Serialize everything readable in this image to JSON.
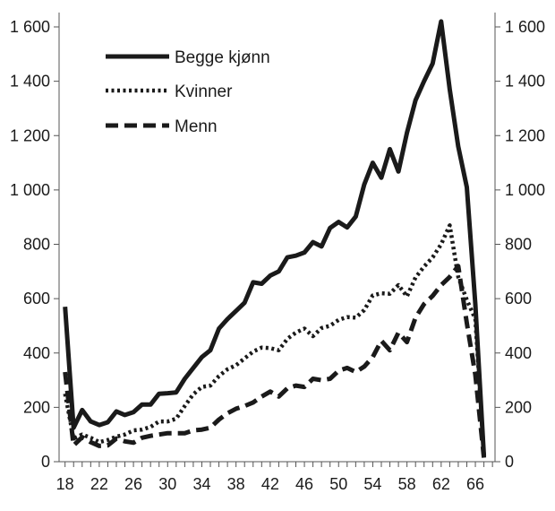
{
  "chart_data": {
    "type": "line",
    "x": [
      18,
      19,
      20,
      21,
      22,
      23,
      24,
      25,
      26,
      27,
      28,
      29,
      30,
      31,
      32,
      33,
      34,
      35,
      36,
      37,
      38,
      39,
      40,
      41,
      42,
      43,
      44,
      45,
      46,
      47,
      48,
      49,
      50,
      51,
      52,
      53,
      54,
      55,
      56,
      57,
      58,
      59,
      60,
      61,
      62,
      63,
      64,
      65,
      66,
      67
    ],
    "xticks": [
      18,
      22,
      26,
      30,
      34,
      38,
      42,
      46,
      50,
      54,
      58,
      62,
      66
    ],
    "xlim": [
      17.3,
      68.3
    ],
    "ylim": [
      0,
      1600
    ],
    "yticks": [
      0,
      200,
      400,
      600,
      800,
      1000,
      1200,
      1400,
      1600
    ],
    "ytick_labels": [
      "0",
      "200",
      "400",
      "600",
      "800",
      "1 000",
      "1 200",
      "1 400",
      "1 600"
    ],
    "grid": false,
    "legend_position": "top-left",
    "series": [
      {
        "name": "Begge kjønn",
        "style": "solid",
        "color": "#1a1a1a",
        "values": [
          570,
          125,
          190,
          148,
          135,
          145,
          185,
          172,
          182,
          210,
          210,
          250,
          252,
          255,
          305,
          345,
          385,
          410,
          490,
          525,
          555,
          585,
          660,
          655,
          685,
          700,
          752,
          758,
          770,
          808,
          792,
          860,
          882,
          862,
          902,
          1020,
          1100,
          1045,
          1150,
          1068,
          1210,
          1330,
          1400,
          1465,
          1620,
          1370,
          1160,
          1010,
          580,
          20
        ]
      },
      {
        "name": "Kvinner",
        "style": "dotted",
        "color": "#1a1a1a",
        "values": [
          250,
          85,
          100,
          88,
          72,
          80,
          92,
          100,
          115,
          118,
          128,
          148,
          148,
          158,
          205,
          248,
          275,
          280,
          315,
          340,
          355,
          380,
          405,
          420,
          418,
          410,
          452,
          475,
          490,
          462,
          492,
          500,
          522,
          532,
          530,
          558,
          612,
          620,
          618,
          650,
          608,
          678,
          718,
          752,
          800,
          870,
          680,
          595,
          525,
          25
        ]
      },
      {
        "name": "Menn",
        "style": "dashed",
        "color": "#1a1a1a",
        "values": [
          330,
          60,
          90,
          72,
          58,
          60,
          85,
          75,
          70,
          88,
          95,
          100,
          105,
          105,
          105,
          115,
          118,
          125,
          155,
          178,
          195,
          205,
          218,
          240,
          258,
          240,
          270,
          280,
          275,
          305,
          300,
          305,
          335,
          345,
          330,
          350,
          385,
          445,
          410,
          475,
          440,
          530,
          580,
          610,
          650,
          680,
          720,
          510,
          320,
          15
        ]
      }
    ]
  }
}
